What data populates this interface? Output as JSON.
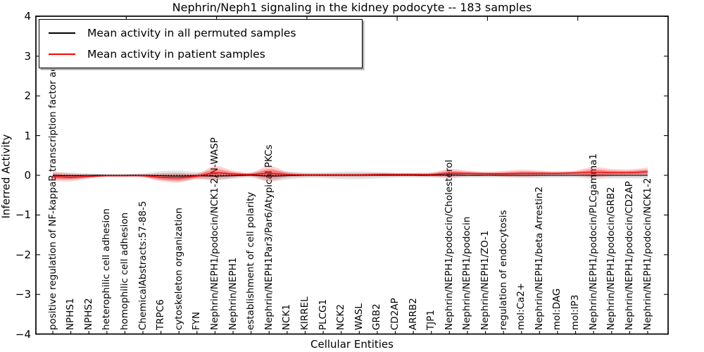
{
  "figure": {
    "title": "Nephrin/Neph1 signaling in the kidney podocyte -- 183 samples",
    "xlabel": "Cellular Entities",
    "ylabel": "Inferred Activity"
  },
  "legend": {
    "entries": [
      {
        "label": "Mean activity in all permuted samples",
        "color": "#000000"
      },
      {
        "label": "Mean activity in patient samples",
        "color": "#ff0000"
      }
    ]
  },
  "chart_data": {
    "type": "line",
    "title": "Nephrin/Neph1 signaling in the kidney podocyte -- 183 samples",
    "xlabel": "Cellular Entities",
    "ylabel": "Inferred Activity",
    "ylim": [
      -4,
      4
    ],
    "yticks": [
      "4",
      "3",
      "2",
      "1",
      "0",
      "−1",
      "−2",
      "−3",
      "−4"
    ],
    "ytick_values": [
      4,
      3,
      2,
      1,
      0,
      -1,
      -2,
      -3,
      -4
    ],
    "grid": false,
    "zero_reference_line": 0,
    "legend_position": "upper left",
    "categories": [
      "positive regulation of NF-kappaB transcription factor activity",
      "NPHS1",
      "NPHS2",
      "heterophilic cell adhesion",
      "homophilic cell adhesion",
      "ChemicalAbstracts:57-88-5",
      "TRPC6",
      "cytoskeleton organization",
      "FYN",
      "Nephrin/NEPH1/podocin/NCK1-2/N-WASP",
      "Nephrin/NEPH1",
      "establishment of cell polarity",
      "Nephrin/NEPH1Par3/Par6/Atypical PKCs",
      "NCK1",
      "KIRREL",
      "PLCG1",
      "NCK2",
      "WASL",
      "GRB2",
      "CD2AP",
      "ARRB2",
      "TJP1",
      "Nephrin/NEPH1/podocin/Cholesterol",
      "Nephrin/NEPH1/podocin",
      "Nephrin/NEPH1/ZO-1",
      "regulation of endocytosis",
      "mol:Ca2+",
      "Nephrin/NEPH1/beta Arrestin2",
      "mol:DAG",
      "mol:IP3",
      "Nephrin/NEPH1/podocin/PLCgamma1",
      "Nephrin/NEPH1/podocin/GRB2",
      "Nephrin/NEPH1/podocin/CD2AP",
      "Nephrin/NEPH1/podocin/NCK1-2"
    ],
    "series": [
      {
        "name": "Mean activity in all permuted samples",
        "color": "#000000",
        "values": [
          0,
          -0.01,
          0,
          0,
          0,
          0,
          -0.01,
          -0.02,
          -0.01,
          -0.02,
          -0.01,
          0,
          -0.02,
          -0.01,
          0,
          0,
          0,
          0,
          0,
          0,
          0,
          0,
          0.01,
          0,
          0,
          0,
          0,
          0,
          0,
          0,
          0,
          0,
          0,
          0
        ],
        "band_halfwidth": [
          0.09,
          0.08,
          0.05,
          0.04,
          0.04,
          0.05,
          0.11,
          0.14,
          0.09,
          0.11,
          0.08,
          0.06,
          0.14,
          0.1,
          0.07,
          0.07,
          0.09,
          0.1,
          0.08,
          0.06,
          0.06,
          0.06,
          0.08,
          0.06,
          0.06,
          0.06,
          0.07,
          0.07,
          0.06,
          0.06,
          0.09,
          0.08,
          0.08,
          0.08
        ],
        "band_color": "#000000"
      },
      {
        "name": "Mean activity in patient samples",
        "color": "#ee1111",
        "values": [
          -0.03,
          -0.05,
          -0.03,
          -0.01,
          -0.01,
          -0.01,
          -0.05,
          -0.06,
          -0.02,
          0.06,
          0.03,
          0.02,
          0.05,
          0.02,
          0.01,
          0.01,
          0.01,
          0.01,
          0.02,
          0.02,
          0.02,
          0.02,
          0.05,
          0.05,
          0.04,
          0.04,
          0.05,
          0.05,
          0.05,
          0.06,
          0.08,
          0.07,
          0.07,
          0.09
        ],
        "band_halfwidth": [
          0.11,
          0.1,
          0.05,
          0.03,
          0.03,
          0.04,
          0.1,
          0.12,
          0.07,
          0.17,
          0.09,
          0.05,
          0.19,
          0.07,
          0.04,
          0.04,
          0.04,
          0.04,
          0.04,
          0.04,
          0.04,
          0.05,
          0.11,
          0.07,
          0.05,
          0.07,
          0.09,
          0.07,
          0.05,
          0.06,
          0.13,
          0.09,
          0.08,
          0.1
        ],
        "band_color": "#ff0000"
      }
    ]
  }
}
